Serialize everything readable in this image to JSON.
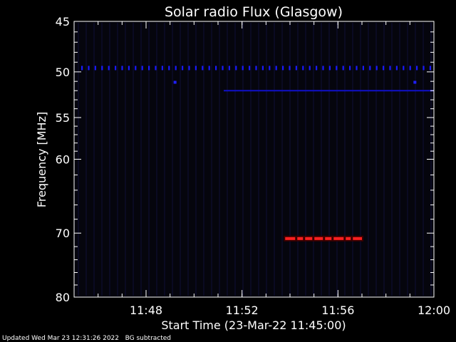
{
  "chart_data": {
    "type": "heatmap",
    "title": "Solar radio Flux (Glasgow)",
    "ylabel": "Frequency [MHz]",
    "xlabel": "Start Time (23-Mar-22 11:45:00)",
    "x_range_minutes": [
      "11:45",
      "12:00"
    ],
    "y_range_mhz": [
      45,
      80
    ],
    "y_ticks": [
      45,
      50,
      55,
      60,
      70,
      80
    ],
    "x_ticks": [
      "11:48",
      "11:52",
      "11:56",
      "12:00"
    ],
    "features": [
      {
        "kind": "dotted-line",
        "freq_mhz": 49.6,
        "t_start": "11:45",
        "t_end": "12:00",
        "color": "#1a1aff"
      },
      {
        "kind": "line",
        "freq_mhz": 52.0,
        "t_start": "11:51",
        "t_end": "12:00",
        "color": "#1010c8"
      },
      {
        "kind": "dot",
        "freq_mhz": 51.1,
        "t": "11:49",
        "color": "#2020ff"
      },
      {
        "kind": "dot",
        "freq_mhz": 51.1,
        "t": "11:59",
        "color": "#2020ff"
      },
      {
        "kind": "dashed-burst",
        "freq_mhz": 70.8,
        "t_start": "11:53.8",
        "t_end": "11:57",
        "color": "#ff2020"
      }
    ]
  },
  "footer": {
    "updated": "Updated Wed Mar 23 12:31:26 2022",
    "note": "BG subtracted"
  }
}
